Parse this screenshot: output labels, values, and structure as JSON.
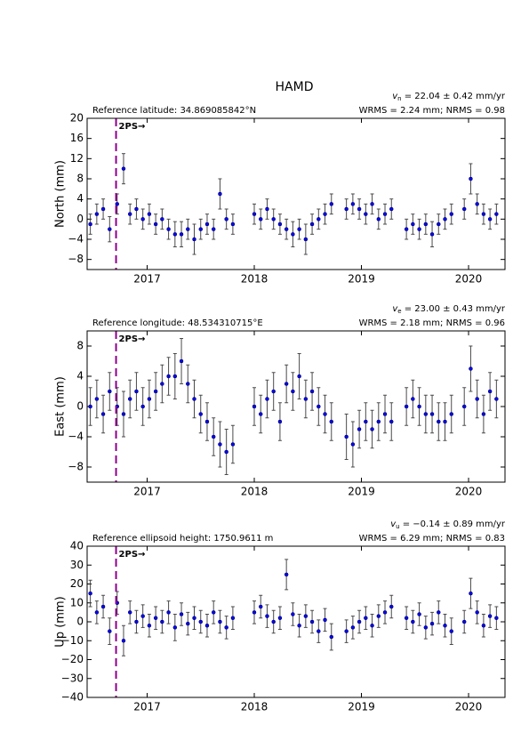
{
  "title": "HAMD",
  "chart_data": [
    {
      "type": "scatter",
      "y_label": "North (mm)",
      "reference": "Reference latitude: 34.869085842°N",
      "rate_symbol": "v",
      "rate_subscript": "n",
      "rate_text": " = 22.04 ± 0.42 mm/yr",
      "stats": "WRMS = 2.24 mm; NRMS = 0.98",
      "color": "#0000ff",
      "error_color": "#4a4a4a",
      "event_x": 2016.71,
      "event_label": "2PS→",
      "event_color": "#8b008b",
      "xlim": [
        2016.44,
        2020.34
      ],
      "xticks": [
        2017,
        2018,
        2019,
        2020
      ],
      "ylim": [
        -10,
        20
      ],
      "yticks": [
        {
          "value": -8,
          "label": "−8"
        },
        {
          "value": -4,
          "label": "−4"
        },
        0,
        4,
        8,
        12,
        16,
        20
      ],
      "x": [
        2016.47,
        2016.53,
        2016.59,
        2016.65,
        2016.72,
        2016.78,
        2016.84,
        2016.9,
        2016.96,
        2017.02,
        2017.08,
        2017.14,
        2017.2,
        2017.26,
        2017.32,
        2017.38,
        2017.44,
        2017.5,
        2017.56,
        2017.62,
        2017.68,
        2017.74,
        2017.8,
        2018.0,
        2018.06,
        2018.12,
        2018.18,
        2018.24,
        2018.3,
        2018.36,
        2018.42,
        2018.48,
        2018.54,
        2018.6,
        2018.66,
        2018.72,
        2018.86,
        2018.92,
        2018.98,
        2019.04,
        2019.1,
        2019.16,
        2019.22,
        2019.28,
        2019.42,
        2019.48,
        2019.54,
        2019.6,
        2019.66,
        2019.72,
        2019.78,
        2019.84,
        2019.96,
        2020.02,
        2020.08,
        2020.14,
        2020.2,
        2020.26
      ],
      "values": [
        -1,
        1,
        2,
        -2,
        3,
        10,
        1,
        2,
        0,
        1,
        -1,
        0,
        -2,
        -3,
        -3,
        -2,
        -4,
        -2,
        -1,
        -2,
        5,
        0,
        -1,
        1,
        0,
        2,
        0,
        -1,
        -2,
        -3,
        -2,
        -4,
        -1,
        0,
        1,
        3,
        2,
        3,
        2,
        1,
        3,
        0,
        1,
        2,
        -2,
        -1,
        -2,
        -1,
        -3,
        -1,
        0,
        1,
        2,
        8,
        3,
        1,
        0,
        1
      ],
      "errors": [
        2,
        2,
        2,
        2.5,
        2,
        3,
        2,
        2,
        2,
        2,
        2,
        2,
        2,
        2.5,
        2.5,
        2,
        3,
        2,
        2,
        2,
        3,
        2,
        2,
        2,
        2,
        2,
        2,
        2,
        2,
        2.5,
        2,
        3,
        2,
        2,
        2,
        2,
        2,
        2,
        2,
        2,
        2,
        2,
        2,
        2,
        2,
        2,
        2,
        2,
        2.5,
        2,
        2,
        2,
        2,
        3,
        2,
        2,
        2,
        2
      ]
    },
    {
      "type": "scatter",
      "y_label": "East (mm)",
      "reference": "Reference longitude: 48.534310715°E",
      "rate_symbol": "v",
      "rate_subscript": "e",
      "rate_text": " = 23.00 ± 0.43 mm/yr",
      "stats": "WRMS = 2.18 mm; NRMS = 0.96",
      "color": "#0000ff",
      "error_color": "#4a4a4a",
      "event_x": 2016.71,
      "event_label": "2PS→",
      "event_color": "#8b008b",
      "xlim": [
        2016.44,
        2020.34
      ],
      "xticks": [
        2017,
        2018,
        2019,
        2020
      ],
      "ylim": [
        -10,
        10
      ],
      "yticks": [
        {
          "value": -8,
          "label": "−8"
        },
        {
          "value": -4,
          "label": "−4"
        },
        0,
        4,
        8
      ],
      "x": [
        2016.47,
        2016.53,
        2016.59,
        2016.65,
        2016.72,
        2016.78,
        2016.84,
        2016.9,
        2016.96,
        2017.02,
        2017.08,
        2017.14,
        2017.2,
        2017.26,
        2017.32,
        2017.38,
        2017.44,
        2017.5,
        2017.56,
        2017.62,
        2017.68,
        2017.74,
        2017.8,
        2018.0,
        2018.06,
        2018.12,
        2018.18,
        2018.24,
        2018.3,
        2018.36,
        2018.42,
        2018.48,
        2018.54,
        2018.6,
        2018.66,
        2018.72,
        2018.86,
        2018.92,
        2018.98,
        2019.04,
        2019.1,
        2019.16,
        2019.22,
        2019.28,
        2019.42,
        2019.48,
        2019.54,
        2019.6,
        2019.66,
        2019.72,
        2019.78,
        2019.84,
        2019.96,
        2020.02,
        2020.08,
        2020.14,
        2020.2,
        2020.26
      ],
      "values": [
        0,
        1,
        -1,
        2,
        0,
        -1,
        1,
        2,
        0,
        1,
        2,
        3,
        4,
        4,
        6,
        3,
        1,
        -1,
        -2,
        -4,
        -5,
        -6,
        -5,
        0,
        -1,
        1,
        2,
        -2,
        3,
        2,
        4,
        1,
        2,
        0,
        -1,
        -2,
        -4,
        -5,
        -3,
        -2,
        -3,
        -2,
        -1,
        -2,
        0,
        1,
        0,
        -1,
        -1,
        -2,
        -2,
        -1,
        0,
        5,
        1,
        -1,
        2,
        1
      ],
      "errors": [
        2.5,
        2.5,
        2.5,
        2.5,
        2.5,
        3,
        2.5,
        2.5,
        2.5,
        2.5,
        2.5,
        2.5,
        2.5,
        3,
        3,
        2.5,
        2.5,
        2.5,
        2.5,
        2.5,
        3,
        3,
        2.5,
        2.5,
        2.5,
        2.5,
        2.5,
        2.5,
        2.5,
        2.5,
        3,
        2.5,
        2.5,
        2.5,
        2.5,
        2.5,
        3,
        3,
        2.5,
        2.5,
        2.5,
        2.5,
        2.5,
        2.5,
        2.5,
        2.5,
        2.5,
        2.5,
        2.5,
        2.5,
        2.5,
        2.5,
        2.5,
        3,
        2.5,
        2.5,
        2.5,
        2.5
      ]
    },
    {
      "type": "scatter",
      "y_label": "Up (mm)",
      "reference": "Reference ellipsoid height: 1750.9611 m",
      "rate_symbol": "v",
      "rate_subscript": "u",
      "rate_text": " = −0.14 ± 0.89 mm/yr",
      "stats": "WRMS = 6.29 mm; NRMS = 0.83",
      "color": "#0000ff",
      "error_color": "#4a4a4a",
      "event_x": 2016.71,
      "event_label": "2PS→",
      "event_color": "#8b008b",
      "xlim": [
        2016.44,
        2020.34
      ],
      "xticks": [
        2017,
        2018,
        2019,
        2020
      ],
      "ylim": [
        -40,
        40
      ],
      "yticks": [
        {
          "value": -40,
          "label": "−40"
        },
        {
          "value": -30,
          "label": "−30"
        },
        {
          "value": -20,
          "label": "−20"
        },
        {
          "value": -10,
          "label": "−10"
        },
        0,
        10,
        20,
        30,
        40
      ],
      "x": [
        2016.47,
        2016.53,
        2016.59,
        2016.65,
        2016.72,
        2016.78,
        2016.84,
        2016.9,
        2016.96,
        2017.02,
        2017.08,
        2017.14,
        2017.2,
        2017.26,
        2017.32,
        2017.38,
        2017.44,
        2017.5,
        2017.56,
        2017.62,
        2017.68,
        2017.74,
        2017.8,
        2018.0,
        2018.06,
        2018.12,
        2018.18,
        2018.24,
        2018.3,
        2018.36,
        2018.42,
        2018.48,
        2018.54,
        2018.6,
        2018.66,
        2018.72,
        2018.86,
        2018.92,
        2018.98,
        2019.04,
        2019.1,
        2019.16,
        2019.22,
        2019.28,
        2019.42,
        2019.48,
        2019.54,
        2019.6,
        2019.66,
        2019.72,
        2019.78,
        2019.84,
        2019.96,
        2020.02,
        2020.08,
        2020.14,
        2020.2,
        2020.26
      ],
      "values": [
        15,
        5,
        8,
        -5,
        10,
        -10,
        5,
        0,
        3,
        -2,
        2,
        0,
        5,
        -3,
        4,
        -1,
        2,
        0,
        -2,
        5,
        0,
        -3,
        2,
        5,
        8,
        3,
        0,
        2,
        25,
        4,
        -2,
        3,
        0,
        -5,
        1,
        -8,
        -5,
        -3,
        0,
        2,
        -2,
        3,
        5,
        8,
        2,
        0,
        4,
        -3,
        -1,
        5,
        -2,
        -5,
        0,
        15,
        5,
        -2,
        3,
        2
      ],
      "errors": [
        7,
        6,
        6,
        7,
        6,
        8,
        6,
        6,
        6,
        6,
        6,
        6,
        6,
        7,
        6,
        6,
        6,
        6,
        6,
        6,
        6,
        6,
        6,
        6,
        6,
        6,
        6,
        6,
        8,
        6,
        6,
        6,
        6,
        6,
        6,
        7,
        6,
        6,
        6,
        6,
        6,
        6,
        6,
        6,
        6,
        6,
        6,
        6,
        6,
        6,
        6,
        7,
        6,
        8,
        6,
        6,
        6,
        6
      ]
    }
  ]
}
